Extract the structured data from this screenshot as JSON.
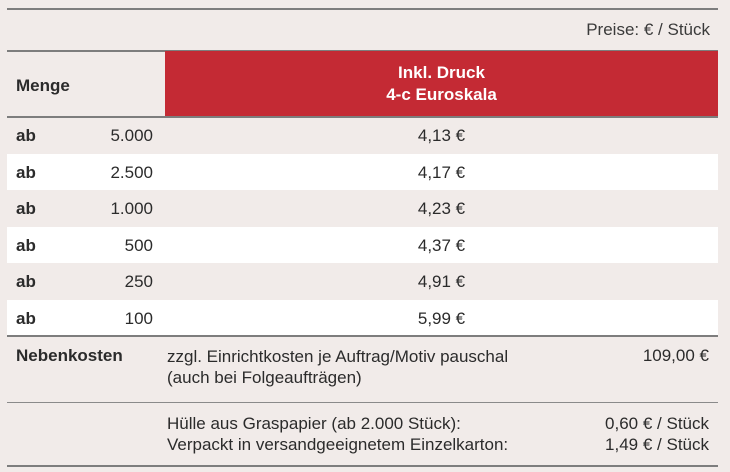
{
  "price_note": "Preise: € / Stück",
  "header": {
    "menge": "Menge",
    "druck_line1": "Inkl. Druck",
    "druck_line2": "4-c Euroskala"
  },
  "rows": [
    {
      "prefix": "ab",
      "qty": "5.000",
      "price": "4,13 €"
    },
    {
      "prefix": "ab",
      "qty": "2.500",
      "price": "4,17 €"
    },
    {
      "prefix": "ab",
      "qty": "1.000",
      "price": "4,23 €"
    },
    {
      "prefix": "ab",
      "qty": "500",
      "price": "4,37 €"
    },
    {
      "prefix": "ab",
      "qty": "250",
      "price": "4,91 €"
    },
    {
      "prefix": "ab",
      "qty": "100",
      "price": "5,99 €"
    }
  ],
  "nebenkosten": {
    "label": "Nebenkosten",
    "desc_line1": "zzgl. Einrichtkosten je Auftrag/Motiv pauschal",
    "desc_line2": "(auch bei Folgeaufträgen)",
    "amount": "109,00 €"
  },
  "extras": [
    {
      "text": "Hülle aus Graspapier (ab 2.000 Stück):",
      "value": "0,60 € / Stück"
    },
    {
      "text": "Verpackt in versandgeeignetem Einzelkarton:",
      "value": "1,49 € / Stück"
    }
  ],
  "colors": {
    "accent_red": "#c42a34",
    "background": "#f1ebe9",
    "alt_row": "#ffffff"
  }
}
